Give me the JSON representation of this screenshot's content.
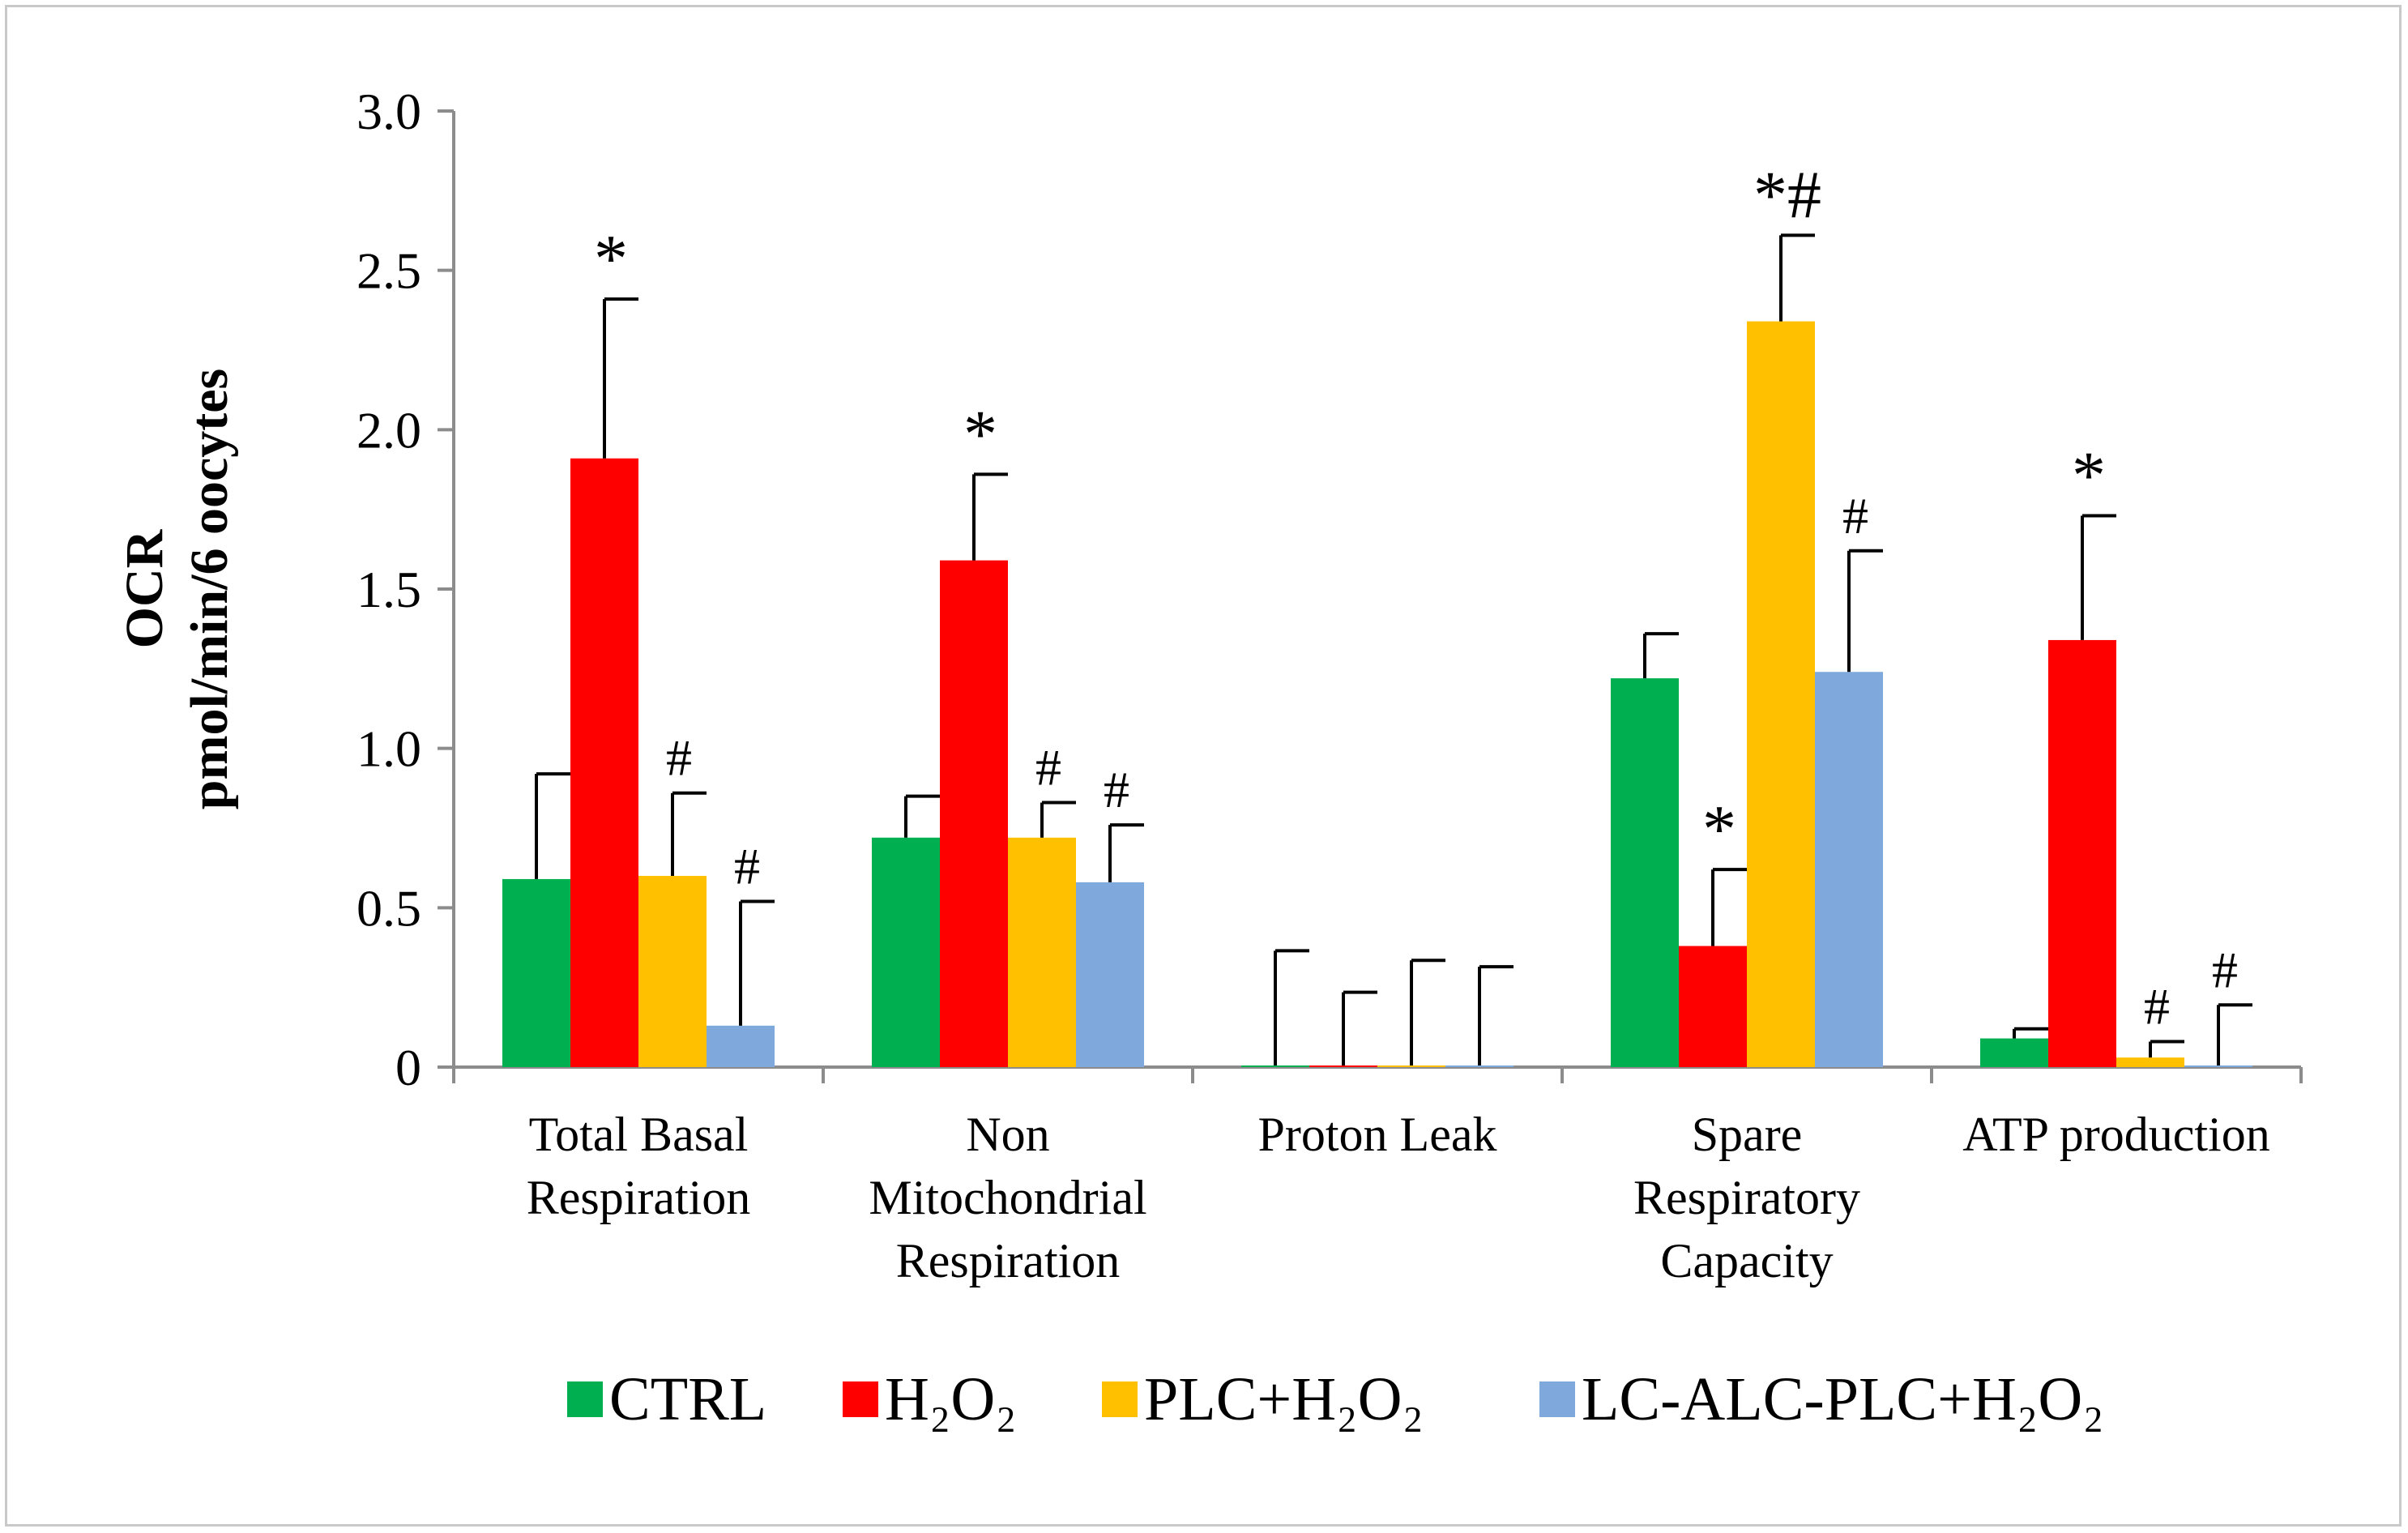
{
  "chart_data": {
    "type": "bar",
    "title": "",
    "xlabel": "",
    "ylabel_line1": "OCR",
    "ylabel_line2": "pmol/min/6 oocytes",
    "ylim": [
      0,
      3.0
    ],
    "yticks": [
      "0",
      "0.5",
      "1.0",
      "1.5",
      "2.0",
      "2.5",
      "3.0"
    ],
    "ytick_values": [
      0,
      0.5,
      1.0,
      1.5,
      2.0,
      2.5,
      3.0
    ],
    "grid": false,
    "legend_position": "bottom",
    "categories": [
      [
        "Total Basal",
        "Respiration"
      ],
      [
        "Non",
        "Mitochondrial",
        "Respiration"
      ],
      [
        "Proton Leak"
      ],
      [
        "Spare",
        "Respiratory",
        "Capacity"
      ],
      [
        "ATP production"
      ]
    ],
    "series": [
      {
        "name": "CTRL",
        "color": "#00b050",
        "values": [
          0.59,
          0.72,
          0.005,
          1.22,
          0.09
        ],
        "errors": [
          0.33,
          0.13,
          0.36,
          0.14,
          0.03
        ],
        "annotations": [
          "",
          "",
          "",
          "",
          ""
        ]
      },
      {
        "name": "H₂O₂",
        "color": "#ff0000",
        "values": [
          1.91,
          1.59,
          0.005,
          0.38,
          1.34
        ],
        "errors": [
          0.5,
          0.27,
          0.23,
          0.24,
          0.39
        ],
        "annotations": [
          "*",
          "*",
          "",
          "*",
          "*"
        ]
      },
      {
        "name": "PLC+H₂O₂",
        "color": "#ffc000",
        "values": [
          0.6,
          0.72,
          0.005,
          2.34,
          0.03
        ],
        "errors": [
          0.26,
          0.11,
          0.33,
          0.27,
          0.05
        ],
        "annotations": [
          "#",
          "#",
          "",
          "*#",
          "#"
        ]
      },
      {
        "name": "LC-ALC-PLC+H₂O₂",
        "color": "#7fa8dc",
        "values": [
          0.13,
          0.58,
          0.005,
          1.24,
          0.005
        ],
        "errors": [
          0.39,
          0.18,
          0.31,
          0.38,
          0.19
        ],
        "annotations": [
          "#",
          "#",
          "",
          "#",
          "#"
        ]
      }
    ]
  }
}
